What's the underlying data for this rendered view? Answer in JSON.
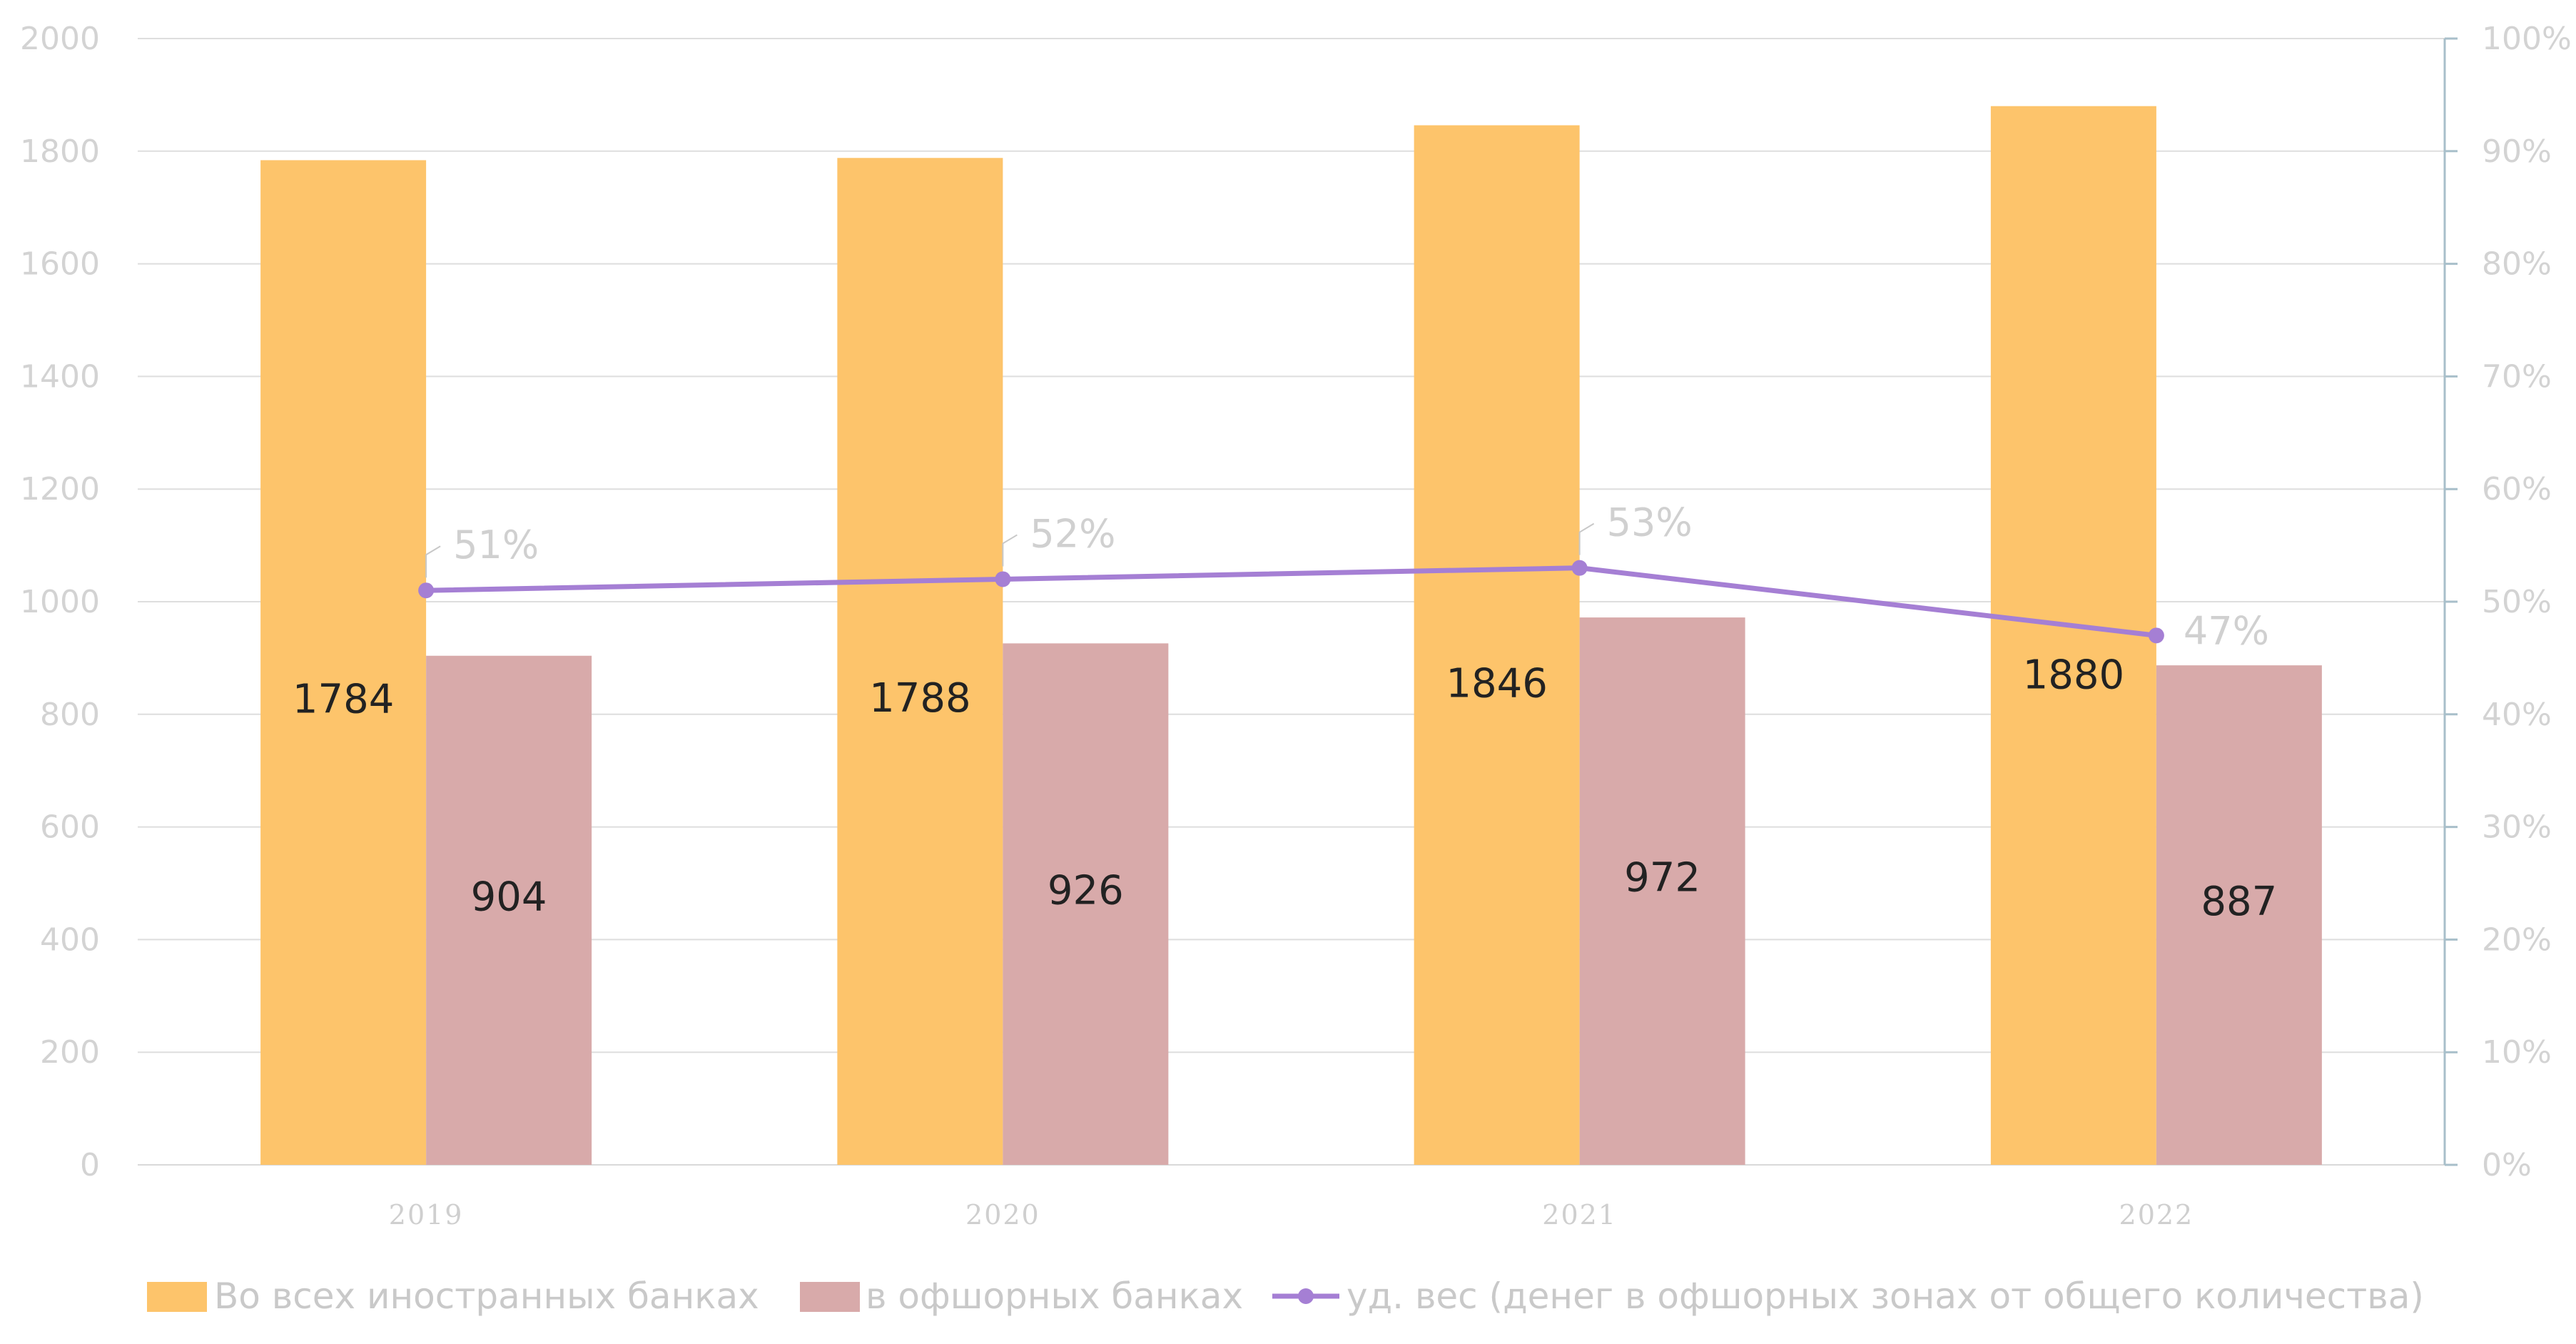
{
  "chart_data": {
    "type": "bar",
    "categories": [
      "2019",
      "2020",
      "2021",
      "2022"
    ],
    "series": [
      {
        "name": "Во всех иностранных банках",
        "type": "bar",
        "axis": "left",
        "values": [
          1784,
          1788,
          1846,
          1880
        ],
        "color": "#fdc46b"
      },
      {
        "name": "в офшорных банках",
        "type": "bar",
        "axis": "left",
        "values": [
          904,
          926,
          972,
          887
        ],
        "color": "#d8aaaa"
      },
      {
        "name": "уд. вес (денег в офшорных зонах от общего количества)",
        "type": "line",
        "axis": "right",
        "values": [
          51,
          52,
          53,
          47
        ],
        "color": "#a57fd4"
      }
    ],
    "ylim": [
      0,
      2000
    ],
    "yticks": [
      "0",
      "200",
      "400",
      "600",
      "800",
      "1000",
      "1200",
      "1400",
      "1600",
      "1800",
      "2000"
    ],
    "y2lim": [
      0,
      100
    ],
    "y2ticks": [
      "0%",
      "10%",
      "20%",
      "30%",
      "40%",
      "50%",
      "60%",
      "70%",
      "80%",
      "90%",
      "100%"
    ],
    "line_labels": [
      "51%",
      "52%",
      "53%",
      "47%"
    ],
    "grid": true,
    "legend_position": "bottom"
  }
}
